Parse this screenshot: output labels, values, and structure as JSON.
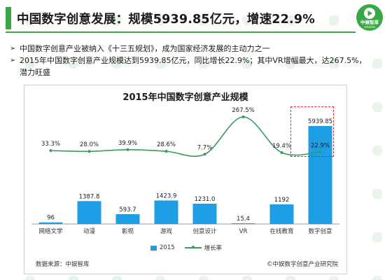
{
  "header": {
    "title": "中国数字创意发展：规模5939.85亿元，增速22.9%",
    "logo_text": "中娱智库",
    "logo_sub": "entdeta"
  },
  "bullets": [
    "中国数字创意产业被纳入《十三五规划》，成为国家经济发展的主动力之一",
    "2015年中国数字创意产业规模达到5939.85亿元，同比增长22.9%；其中VR增幅最大，达267.5%，潜力旺盛"
  ],
  "colors": {
    "accent": "#3aa845",
    "bar": "#1e9ee4",
    "line": "#3c9a5f",
    "highlight": "#d6262a"
  },
  "chart_data": {
    "type": "bar",
    "title": "2015年中国数字创意产业规模",
    "categories": [
      "网络文学",
      "动漫",
      "影视",
      "游戏",
      "创意设计",
      "VR",
      "在线教育",
      "数字创意"
    ],
    "series": [
      {
        "name": "2015",
        "type": "bar",
        "values": [
          96,
          1387.8,
          593.7,
          1423.9,
          1231.0,
          15.4,
          1192,
          5939.85
        ]
      },
      {
        "name": "增长率",
        "type": "line",
        "values": [
          33.3,
          28.0,
          39.9,
          28.6,
          7.7,
          267.5,
          19.4,
          22.9
        ]
      }
    ],
    "bar_labels": [
      "96",
      "1387.8",
      "593.7",
      "1423.9",
      "1231.0",
      "15.4",
      "1192",
      "5939.85"
    ],
    "line_labels": [
      "33.3%",
      "28.0%",
      "39.9%",
      "28.6%",
      "7.7%",
      "267.5%",
      "19.4%",
      "22.9%"
    ],
    "highlighted_category": "数字创意",
    "legend_position": "bottom",
    "grid": false
  },
  "footer": {
    "source": "数据来源：中娱智库",
    "copyright": "©中娱数字创意产业研究院"
  }
}
